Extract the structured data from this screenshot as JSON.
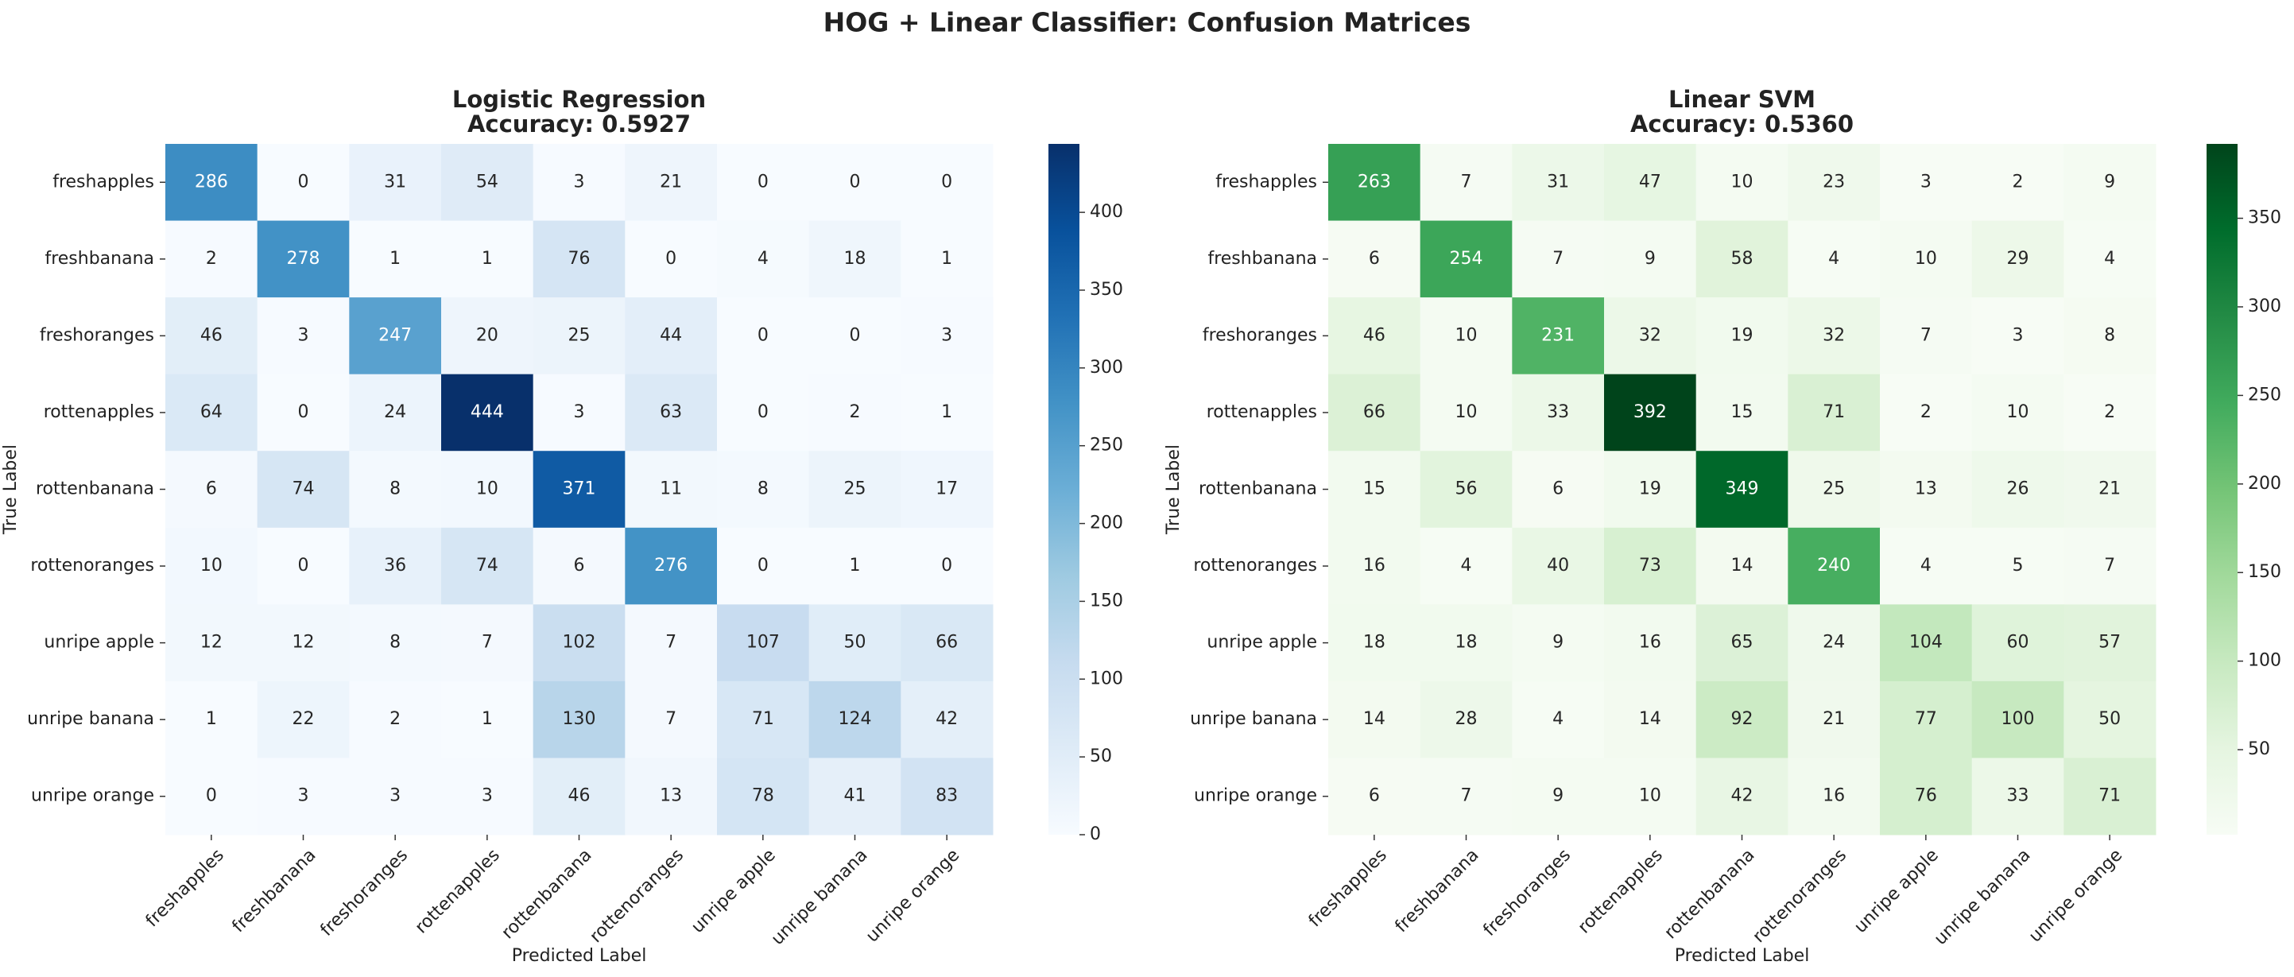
{
  "title": "HOG + Linear Classifier: Confusion Matrices",
  "chart_data": [
    {
      "type": "heatmap",
      "title": "Logistic Regression",
      "subtitle": "Accuracy: 0.5927",
      "x_categories": [
        "freshapples",
        "freshbanana",
        "freshoranges",
        "rottenapples",
        "rottenbanana",
        "rottenoranges",
        "unripe apple",
        "unripe banana",
        "unripe orange"
      ],
      "y_categories": [
        "freshapples",
        "freshbanana",
        "freshoranges",
        "rottenapples",
        "rottenbanana",
        "rottenoranges",
        "unripe apple",
        "unripe banana",
        "unripe orange"
      ],
      "xlabel": "Predicted Label",
      "ylabel": "True Label",
      "values": [
        [
          286,
          0,
          31,
          54,
          3,
          21,
          0,
          0,
          0
        ],
        [
          2,
          278,
          1,
          1,
          76,
          0,
          4,
          18,
          1
        ],
        [
          46,
          3,
          247,
          20,
          25,
          44,
          0,
          0,
          3
        ],
        [
          64,
          0,
          24,
          444,
          3,
          63,
          0,
          2,
          1
        ],
        [
          6,
          74,
          8,
          10,
          371,
          11,
          8,
          25,
          17
        ],
        [
          10,
          0,
          36,
          74,
          6,
          276,
          0,
          1,
          0
        ],
        [
          12,
          12,
          8,
          7,
          102,
          7,
          107,
          50,
          66
        ],
        [
          1,
          22,
          2,
          1,
          130,
          7,
          71,
          124,
          42
        ],
        [
          0,
          3,
          3,
          3,
          46,
          13,
          78,
          41,
          83
        ]
      ],
      "clim": [
        0,
        444
      ],
      "cticks": [
        0,
        50,
        100,
        150,
        200,
        250,
        300,
        350,
        400
      ],
      "colors": [
        "#f7fbff",
        "#deebf7",
        "#c6dbef",
        "#9ecae1",
        "#6baed6",
        "#4292c6",
        "#2171b5",
        "#08519c",
        "#08306b"
      ]
    },
    {
      "type": "heatmap",
      "title": "Linear SVM",
      "subtitle": "Accuracy: 0.5360",
      "x_categories": [
        "freshapples",
        "freshbanana",
        "freshoranges",
        "rottenapples",
        "rottenbanana",
        "rottenoranges",
        "unripe apple",
        "unripe banana",
        "unripe orange"
      ],
      "y_categories": [
        "freshapples",
        "freshbanana",
        "freshoranges",
        "rottenapples",
        "rottenbanana",
        "rottenoranges",
        "unripe apple",
        "unripe banana",
        "unripe orange"
      ],
      "xlabel": "Predicted Label",
      "ylabel": "True Label",
      "values": [
        [
          263,
          7,
          31,
          47,
          10,
          23,
          3,
          2,
          9
        ],
        [
          6,
          254,
          7,
          9,
          58,
          4,
          10,
          29,
          4
        ],
        [
          46,
          10,
          231,
          32,
          19,
          32,
          7,
          3,
          8
        ],
        [
          66,
          10,
          33,
          392,
          15,
          71,
          2,
          10,
          2
        ],
        [
          15,
          56,
          6,
          19,
          349,
          25,
          13,
          26,
          21
        ],
        [
          16,
          4,
          40,
          73,
          14,
          240,
          4,
          5,
          7
        ],
        [
          18,
          18,
          9,
          16,
          65,
          24,
          104,
          60,
          57
        ],
        [
          14,
          28,
          4,
          14,
          92,
          21,
          77,
          100,
          50
        ],
        [
          6,
          7,
          9,
          10,
          42,
          16,
          76,
          33,
          71
        ]
      ],
      "clim": [
        2,
        392
      ],
      "cticks": [
        50,
        100,
        150,
        200,
        250,
        300,
        350
      ],
      "colors": [
        "#f7fcf5",
        "#e5f5e0",
        "#c7e9c0",
        "#a1d99b",
        "#74c476",
        "#41ab5d",
        "#238b45",
        "#006d2c",
        "#00441b"
      ]
    }
  ]
}
